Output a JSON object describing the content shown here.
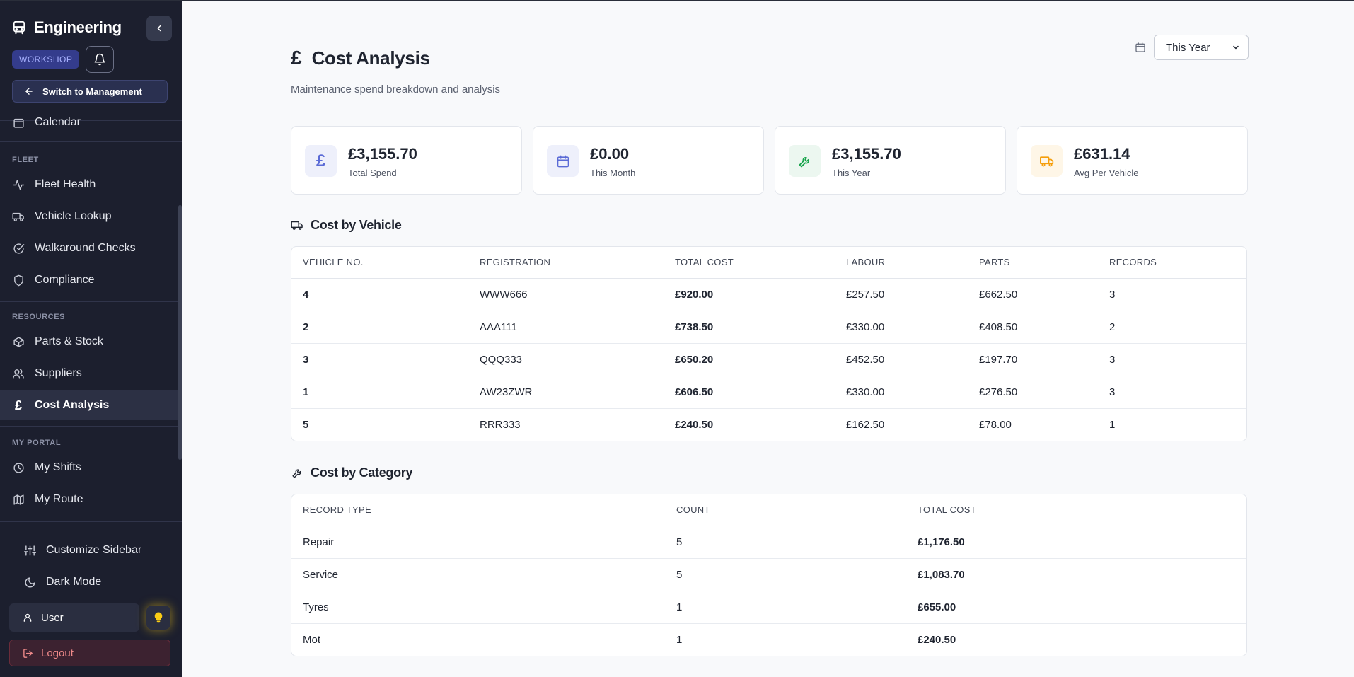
{
  "sidebar": {
    "brand": "Engineering",
    "mode_badge": "WORKSHOP",
    "switch_label": "Switch to Management",
    "partial_item": "Calendar",
    "sections": {
      "fleet": "FLEET",
      "resources": "RESOURCES",
      "portal": "MY PORTAL"
    },
    "fleet_items": [
      "Fleet Health",
      "Vehicle Lookup",
      "Walkaround Checks",
      "Compliance"
    ],
    "resource_items": [
      "Parts & Stock",
      "Suppliers",
      "Cost Analysis"
    ],
    "portal_items": [
      "My Shifts",
      "My Route"
    ],
    "footer": {
      "customize": "Customize Sidebar",
      "dark_mode": "Dark Mode",
      "user": "User",
      "logout": "Logout"
    }
  },
  "header": {
    "title": "Cost Analysis",
    "subtitle": "Maintenance spend breakdown and analysis",
    "period": "This Year"
  },
  "stats": [
    {
      "value": "£3,155.70",
      "label": "Total Spend",
      "icon": "pound-icon",
      "color": "#5b6bd6"
    },
    {
      "value": "£0.00",
      "label": "This Month",
      "icon": "calendar-icon",
      "color": "#5b6bd6"
    },
    {
      "value": "£3,155.70",
      "label": "This Year",
      "icon": "wrench-icon",
      "color": "#16a34a"
    },
    {
      "value": "£631.14",
      "label": "Avg Per Vehicle",
      "icon": "truck-icon",
      "color": "#f59e0b"
    }
  ],
  "vehicle_section": {
    "title": "Cost by Vehicle",
    "columns": [
      "VEHICLE NO.",
      "REGISTRATION",
      "TOTAL COST",
      "LABOUR",
      "PARTS",
      "RECORDS"
    ],
    "rows": [
      [
        "4",
        "WWW666",
        "£920.00",
        "£257.50",
        "£662.50",
        "3"
      ],
      [
        "2",
        "AAA111",
        "£738.50",
        "£330.00",
        "£408.50",
        "2"
      ],
      [
        "3",
        "QQQ333",
        "£650.20",
        "£452.50",
        "£197.70",
        "3"
      ],
      [
        "1",
        "AW23ZWR",
        "£606.50",
        "£330.00",
        "£276.50",
        "3"
      ],
      [
        "5",
        "RRR333",
        "£240.50",
        "£162.50",
        "£78.00",
        "1"
      ]
    ]
  },
  "category_section": {
    "title": "Cost by Category",
    "columns": [
      "RECORD TYPE",
      "COUNT",
      "TOTAL COST"
    ],
    "rows": [
      [
        "Repair",
        "5",
        "£1,176.50"
      ],
      [
        "Service",
        "5",
        "£1,083.70"
      ],
      [
        "Tyres",
        "1",
        "£655.00"
      ],
      [
        "Mot",
        "1",
        "£240.50"
      ]
    ]
  },
  "colors": {
    "sidebar_bg": "#1c1f2e",
    "active_item_bg": "#2c3044",
    "badge_bg": "#343c8c",
    "logout_bg": "#3c2230",
    "accent_indigo": "#5b6bd6"
  }
}
